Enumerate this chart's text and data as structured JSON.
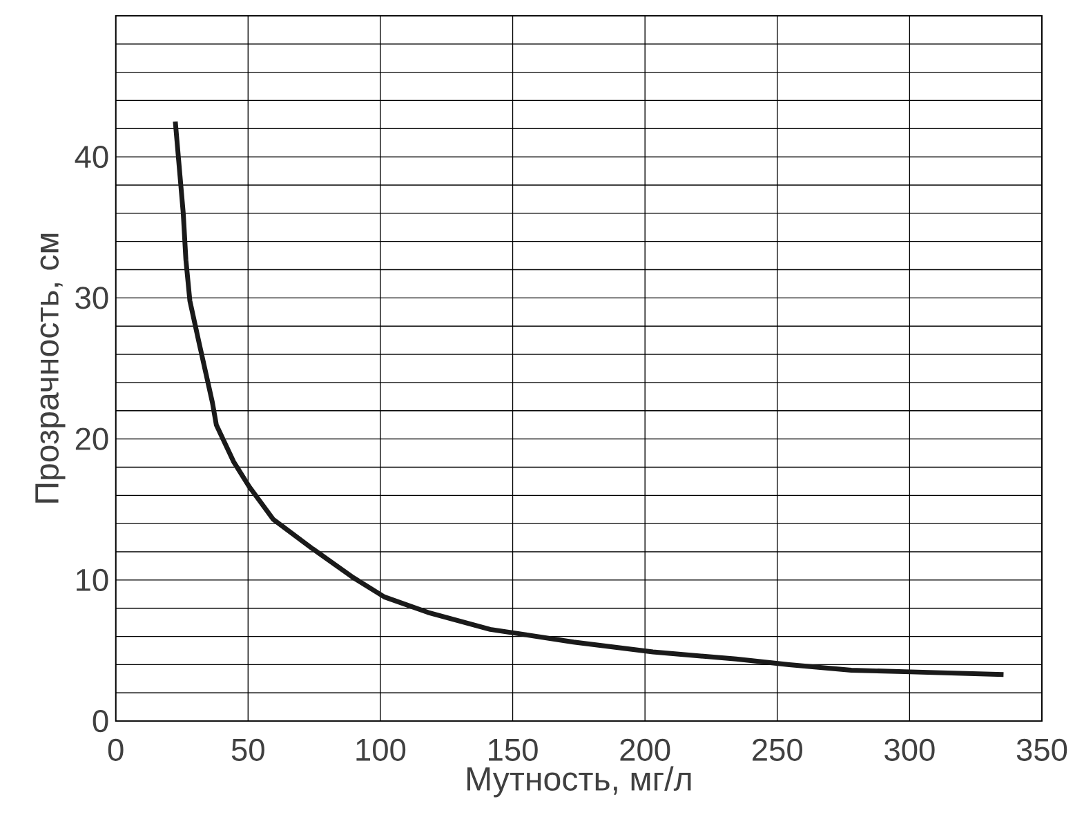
{
  "chart_data": {
    "type": "line",
    "xlabel": "Мутность, мг/л",
    "ylabel": "Прозрачность, см",
    "x": [
      22.5,
      25.5,
      26.5,
      28,
      31.5,
      36.5,
      38,
      44.5,
      50.5,
      59.5,
      74.5,
      89.5,
      101.5,
      118,
      141.5,
      173,
      203,
      234.5,
      254.5,
      278,
      298,
      335.5
    ],
    "series": [
      {
        "color": "#1a1a1a",
        "values": [
          42.5,
          36.0,
          32.7,
          29.8,
          26.8,
          22.6,
          21.0,
          18.4,
          16.6,
          14.3,
          12.2,
          10.2,
          8.8,
          7.7,
          6.5,
          5.6,
          4.9,
          4.4,
          4.0,
          3.6,
          3.5,
          3.3
        ]
      }
    ],
    "xlim": [
      0,
      350
    ],
    "xticks": [
      0,
      50,
      100,
      150,
      200,
      250,
      300,
      350
    ],
    "ylim": [
      0,
      50
    ],
    "yticks": [
      0,
      {
        "value": 2,
        "label": null
      },
      {
        "value": 4,
        "label": null
      },
      {
        "value": 6,
        "label": null
      },
      {
        "value": 8,
        "label": null
      },
      10,
      {
        "value": 12,
        "label": null
      },
      {
        "value": 14,
        "label": null
      },
      {
        "value": 16,
        "label": null
      },
      {
        "value": 18,
        "label": null
      },
      20,
      {
        "value": 22,
        "label": null
      },
      {
        "value": 24,
        "label": null
      },
      {
        "value": 26,
        "label": null
      },
      {
        "value": 28,
        "label": null
      },
      30,
      {
        "value": 32,
        "label": null
      },
      {
        "value": 34,
        "label": null
      },
      {
        "value": 36,
        "label": null
      },
      {
        "value": 38,
        "label": null
      },
      40,
      {
        "value": 42,
        "label": null
      },
      {
        "value": 44,
        "label": null
      },
      {
        "value": 46,
        "label": null
      },
      {
        "value": 48,
        "label": null
      }
    ],
    "grid": true,
    "marker": "none",
    "line_style": "solid"
  }
}
